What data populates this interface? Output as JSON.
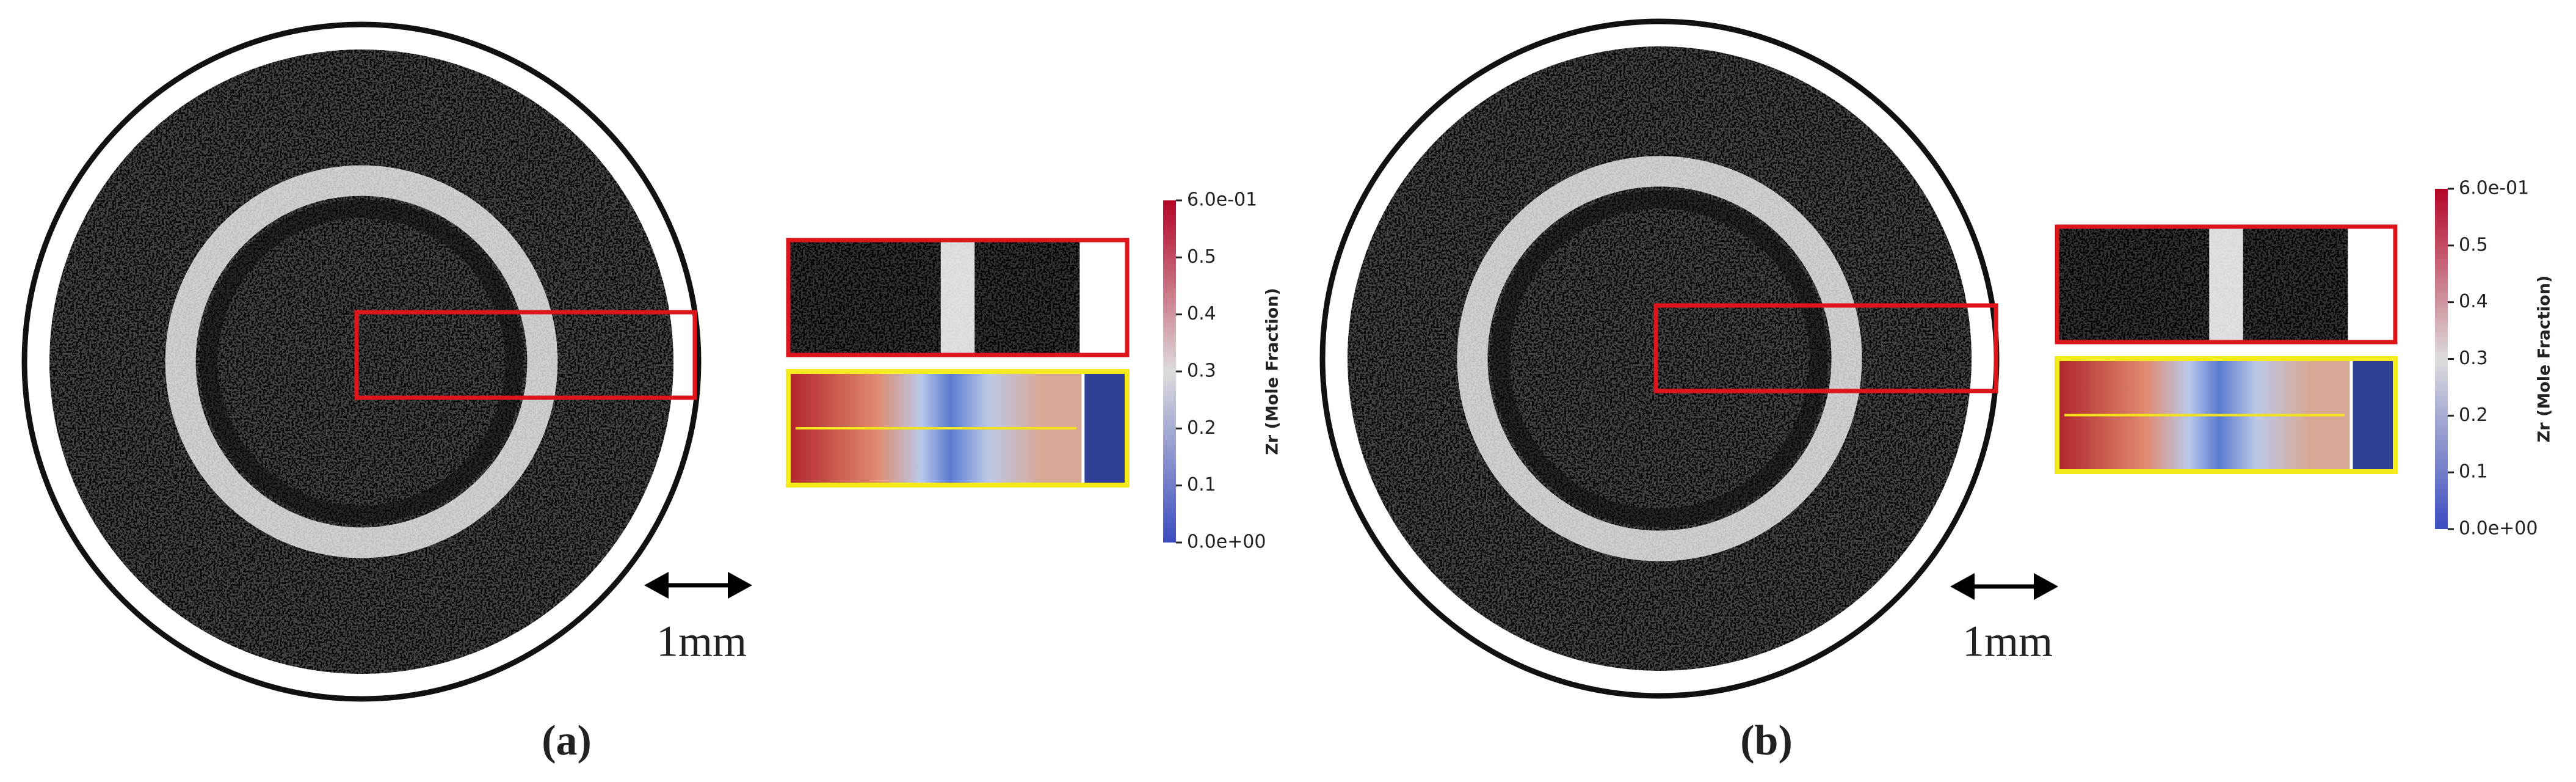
{
  "panels": [
    {
      "caption": "(a)",
      "scale_bar": "1mm",
      "colorbar": {
        "label": "Zr (Mole Fraction)",
        "ticks": [
          {
            "value": 0.6,
            "label": "6.0e-01"
          },
          0.5,
          0.4,
          0.3,
          0.2,
          0.1,
          {
            "value": 0,
            "label": "0.0e+00"
          }
        ]
      }
    },
    {
      "caption": "(b)",
      "scale_bar": "1mm",
      "colorbar": {
        "label": "Zr (Mole Fraction)",
        "ticks": [
          {
            "value": 0.6,
            "label": "6.0e-01"
          },
          0.5,
          0.4,
          0.3,
          0.2,
          0.1,
          {
            "value": 0,
            "label": "0.0e+00"
          }
        ]
      }
    }
  ]
}
